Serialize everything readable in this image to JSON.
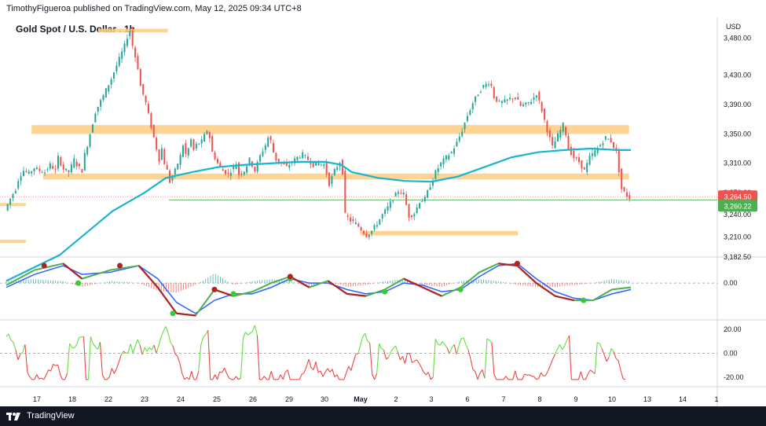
{
  "publish_line": "TimothyFigueroa published on TradingView.com, May 12, 2025 09:34 UTC+8",
  "footer": {
    "brand": "TradingView",
    "logo_icon": "tradingview-logo-icon"
  },
  "colors": {
    "up": "#26a69a",
    "down": "#ef5350",
    "zone": "#ffcc80",
    "ma": "#19b5cc",
    "macd_fast": "#4caf50",
    "macd_slow": "#2962ff",
    "macd_cross_up": "#33cc33",
    "macd_cross_down": "#b22222",
    "osc_up": "#66dd44",
    "osc_down": "#ee4444",
    "price_tag_red": "#ef5350",
    "price_tag_green": "#4caf50"
  },
  "chart_data": {
    "type": "candlestick",
    "title": "Gold Spot / U.S. Dollar . 1h",
    "currency": "USD",
    "price_axis": {
      "ticks": [
        3182.5,
        3210.0,
        3240.0,
        3270.0,
        3310.0,
        3350.0,
        3390.0,
        3430.0,
        3480.0
      ],
      "tick_labels": [
        "3,182.50",
        "3,210.00",
        "3,240.00",
        "3,270.00",
        "3,310.00",
        "3,350.00",
        "3,390.00",
        "3,430.00",
        "3,480.00"
      ],
      "range": [
        3182.5,
        3500
      ]
    },
    "price_labels": [
      {
        "value": "3,264.50",
        "color": "red"
      },
      {
        "value": "3,260.22",
        "color": "green"
      }
    ],
    "x_ticks": [
      "17",
      "18",
      "22",
      "23",
      "24",
      "25",
      "26",
      "29",
      "30",
      "May",
      "2",
      "3",
      "6",
      "7",
      "8",
      "9",
      "10",
      "13",
      "14",
      "1"
    ],
    "path_points": [
      [
        0,
        3246
      ],
      [
        2,
        3262
      ],
      [
        4,
        3275
      ],
      [
        5,
        3288
      ],
      [
        6,
        3295
      ],
      [
        7,
        3300
      ],
      [
        9,
        3296
      ],
      [
        11,
        3304
      ],
      [
        13,
        3300
      ],
      [
        15,
        3298
      ],
      [
        17,
        3308
      ],
      [
        19,
        3300
      ],
      [
        20,
        3318
      ],
      [
        22,
        3302
      ],
      [
        24,
        3298
      ],
      [
        26,
        3315
      ],
      [
        27,
        3308
      ],
      [
        29,
        3300
      ],
      [
        30,
        3322
      ],
      [
        31,
        3335
      ],
      [
        34,
        3380
      ],
      [
        37,
        3402
      ],
      [
        40,
        3425
      ],
      [
        43,
        3452
      ],
      [
        45,
        3470
      ],
      [
        46,
        3482
      ],
      [
        47,
        3490
      ],
      [
        48,
        3470
      ],
      [
        50,
        3440
      ],
      [
        51,
        3415
      ],
      [
        53,
        3392
      ],
      [
        55,
        3360
      ],
      [
        57,
        3330
      ],
      [
        58,
        3315
      ],
      [
        59,
        3330
      ],
      [
        60,
        3310
      ],
      [
        61,
        3300
      ],
      [
        62,
        3285
      ],
      [
        64,
        3300
      ],
      [
        66,
        3320
      ],
      [
        67,
        3335
      ],
      [
        68,
        3322
      ],
      [
        69,
        3330
      ],
      [
        70,
        3342
      ],
      [
        71,
        3328
      ],
      [
        72,
        3335
      ],
      [
        74,
        3340
      ],
      [
        76,
        3355
      ],
      [
        77,
        3345
      ],
      [
        78,
        3325
      ],
      [
        80,
        3310
      ],
      [
        82,
        3300
      ],
      [
        84,
        3295
      ],
      [
        86,
        3305
      ],
      [
        87,
        3310
      ],
      [
        88,
        3295
      ],
      [
        90,
        3300
      ],
      [
        92,
        3315
      ],
      [
        94,
        3300
      ],
      [
        96,
        3320
      ],
      [
        98,
        3335
      ],
      [
        99,
        3345
      ],
      [
        100,
        3340
      ],
      [
        101,
        3325
      ],
      [
        102,
        3315
      ],
      [
        104,
        3310
      ],
      [
        106,
        3305
      ],
      [
        108,
        3312
      ],
      [
        110,
        3318
      ],
      [
        112,
        3322
      ],
      [
        114,
        3315
      ],
      [
        116,
        3308
      ],
      [
        118,
        3310
      ],
      [
        120,
        3308
      ],
      [
        121,
        3296
      ],
      [
        122,
        3282
      ],
      [
        124,
        3300
      ],
      [
        126,
        3312
      ],
      [
        127,
        3298
      ],
      [
        128,
        3240
      ],
      [
        130,
        3232
      ],
      [
        132,
        3228
      ],
      [
        134,
        3220
      ],
      [
        136,
        3212
      ],
      [
        138,
        3218
      ],
      [
        140,
        3228
      ],
      [
        142,
        3240
      ],
      [
        144,
        3250
      ],
      [
        146,
        3262
      ],
      [
        148,
        3272
      ],
      [
        150,
        3268
      ],
      [
        152,
        3238
      ],
      [
        154,
        3242
      ],
      [
        156,
        3258
      ],
      [
        158,
        3262
      ],
      [
        160,
        3280
      ],
      [
        162,
        3298
      ],
      [
        164,
        3310
      ],
      [
        166,
        3318
      ],
      [
        168,
        3325
      ],
      [
        170,
        3338
      ],
      [
        172,
        3355
      ],
      [
        174,
        3375
      ],
      [
        176,
        3392
      ],
      [
        178,
        3405
      ],
      [
        180,
        3415
      ],
      [
        182,
        3420
      ],
      [
        183,
        3415
      ],
      [
        184,
        3400
      ],
      [
        186,
        3392
      ],
      [
        188,
        3394
      ],
      [
        190,
        3398
      ],
      [
        192,
        3400
      ],
      [
        194,
        3388
      ],
      [
        196,
        3390
      ],
      [
        198,
        3395
      ],
      [
        200,
        3405
      ],
      [
        202,
        3382
      ],
      [
        204,
        3355
      ],
      [
        206,
        3332
      ],
      [
        208,
        3348
      ],
      [
        210,
        3362
      ],
      [
        211,
        3350
      ],
      [
        212,
        3330
      ],
      [
        214,
        3318
      ],
      [
        216,
        3312
      ],
      [
        218,
        3300
      ],
      [
        220,
        3318
      ],
      [
        222,
        3326
      ],
      [
        224,
        3335
      ],
      [
        226,
        3345
      ],
      [
        228,
        3340
      ],
      [
        230,
        3325
      ],
      [
        232,
        3275
      ],
      [
        234,
        3266
      ],
      [
        235,
        3263
      ]
    ],
    "ma_points": [
      [
        0,
        3150
      ],
      [
        20,
        3185
      ],
      [
        40,
        3245
      ],
      [
        52,
        3270
      ],
      [
        60,
        3290
      ],
      [
        70,
        3298
      ],
      [
        80,
        3305
      ],
      [
        90,
        3308
      ],
      [
        100,
        3310
      ],
      [
        110,
        3312
      ],
      [
        120,
        3312
      ],
      [
        126,
        3308
      ],
      [
        130,
        3298
      ],
      [
        140,
        3290
      ],
      [
        150,
        3286
      ],
      [
        160,
        3285
      ],
      [
        170,
        3292
      ],
      [
        180,
        3305
      ],
      [
        190,
        3318
      ],
      [
        200,
        3325
      ],
      [
        210,
        3328
      ],
      [
        220,
        3330
      ],
      [
        230,
        3328
      ],
      [
        235,
        3328
      ]
    ],
    "zones": [
      {
        "x0": 0.137,
        "x1": 0.234,
        "y0": 3493,
        "y1": 3488
      },
      {
        "x0": 0.044,
        "x1": 0.877,
        "y0": 3362,
        "y1": 3350
      },
      {
        "x0": 0.06,
        "x1": 0.877,
        "y0": 3296,
        "y1": 3288
      },
      {
        "x0": 0.502,
        "x1": 0.722,
        "y0": 3218,
        "y1": 3212
      },
      {
        "x0": 0.0,
        "x1": 0.036,
        "y0": 3256,
        "y1": 3252
      },
      {
        "x0": 0.0,
        "x1": 0.036,
        "y0": 3206,
        "y1": 3202
      }
    ],
    "support_line": 3260.22,
    "current_line": 3264.5,
    "macd": {
      "zero_label": "0.00",
      "fast": [
        [
          0,
          -1
        ],
        [
          15,
          6
        ],
        [
          30,
          9
        ],
        [
          40,
          2
        ],
        [
          55,
          6
        ],
        [
          70,
          8
        ],
        [
          80,
          -2
        ],
        [
          90,
          -14
        ],
        [
          100,
          -15
        ],
        [
          110,
          -3
        ],
        [
          120,
          -6
        ],
        [
          130,
          -4
        ],
        [
          140,
          0
        ],
        [
          150,
          3
        ],
        [
          160,
          -2
        ],
        [
          170,
          1
        ],
        [
          180,
          -5
        ],
        [
          190,
          -6
        ],
        [
          200,
          -3
        ],
        [
          210,
          2
        ],
        [
          220,
          -2
        ],
        [
          230,
          -6
        ],
        [
          240,
          -2
        ],
        [
          250,
          5
        ],
        [
          260,
          9
        ],
        [
          270,
          8
        ],
        [
          280,
          0
        ],
        [
          290,
          -6
        ],
        [
          300,
          -8
        ],
        [
          310,
          -8
        ],
        [
          320,
          -3
        ],
        [
          330,
          -2
        ]
      ],
      "slow": [
        [
          0,
          -2
        ],
        [
          15,
          4
        ],
        [
          30,
          8
        ],
        [
          40,
          4
        ],
        [
          55,
          5
        ],
        [
          70,
          8
        ],
        [
          80,
          2
        ],
        [
          90,
          -9
        ],
        [
          100,
          -14
        ],
        [
          110,
          -8
        ],
        [
          120,
          -5
        ],
        [
          130,
          -5
        ],
        [
          140,
          -2
        ],
        [
          150,
          2
        ],
        [
          160,
          0
        ],
        [
          170,
          0
        ],
        [
          180,
          -3
        ],
        [
          190,
          -5
        ],
        [
          200,
          -4
        ],
        [
          210,
          0
        ],
        [
          220,
          -1
        ],
        [
          230,
          -4
        ],
        [
          240,
          -3
        ],
        [
          250,
          3
        ],
        [
          260,
          8
        ],
        [
          270,
          9
        ],
        [
          280,
          2
        ],
        [
          290,
          -4
        ],
        [
          300,
          -7
        ],
        [
          310,
          -8
        ],
        [
          320,
          -5
        ],
        [
          330,
          -3
        ]
      ],
      "cross_up": [
        [
          38,
          0
        ],
        [
          88,
          -14
        ],
        [
          120,
          -5
        ],
        [
          150,
          2
        ],
        [
          200,
          -4
        ],
        [
          240,
          -3
        ],
        [
          305,
          -8
        ]
      ],
      "cross_down": [
        [
          20,
          8
        ],
        [
          60,
          8
        ],
        [
          110,
          -3
        ],
        [
          150,
          3
        ],
        [
          270,
          9
        ]
      ],
      "range": [
        -17,
        12
      ]
    },
    "oscillator": {
      "ticks": [
        20.0,
        0.0,
        -20.0
      ],
      "tick_labels": [
        "20.00",
        "0.00",
        "-20.00"
      ],
      "range": [
        -28,
        28
      ]
    }
  }
}
